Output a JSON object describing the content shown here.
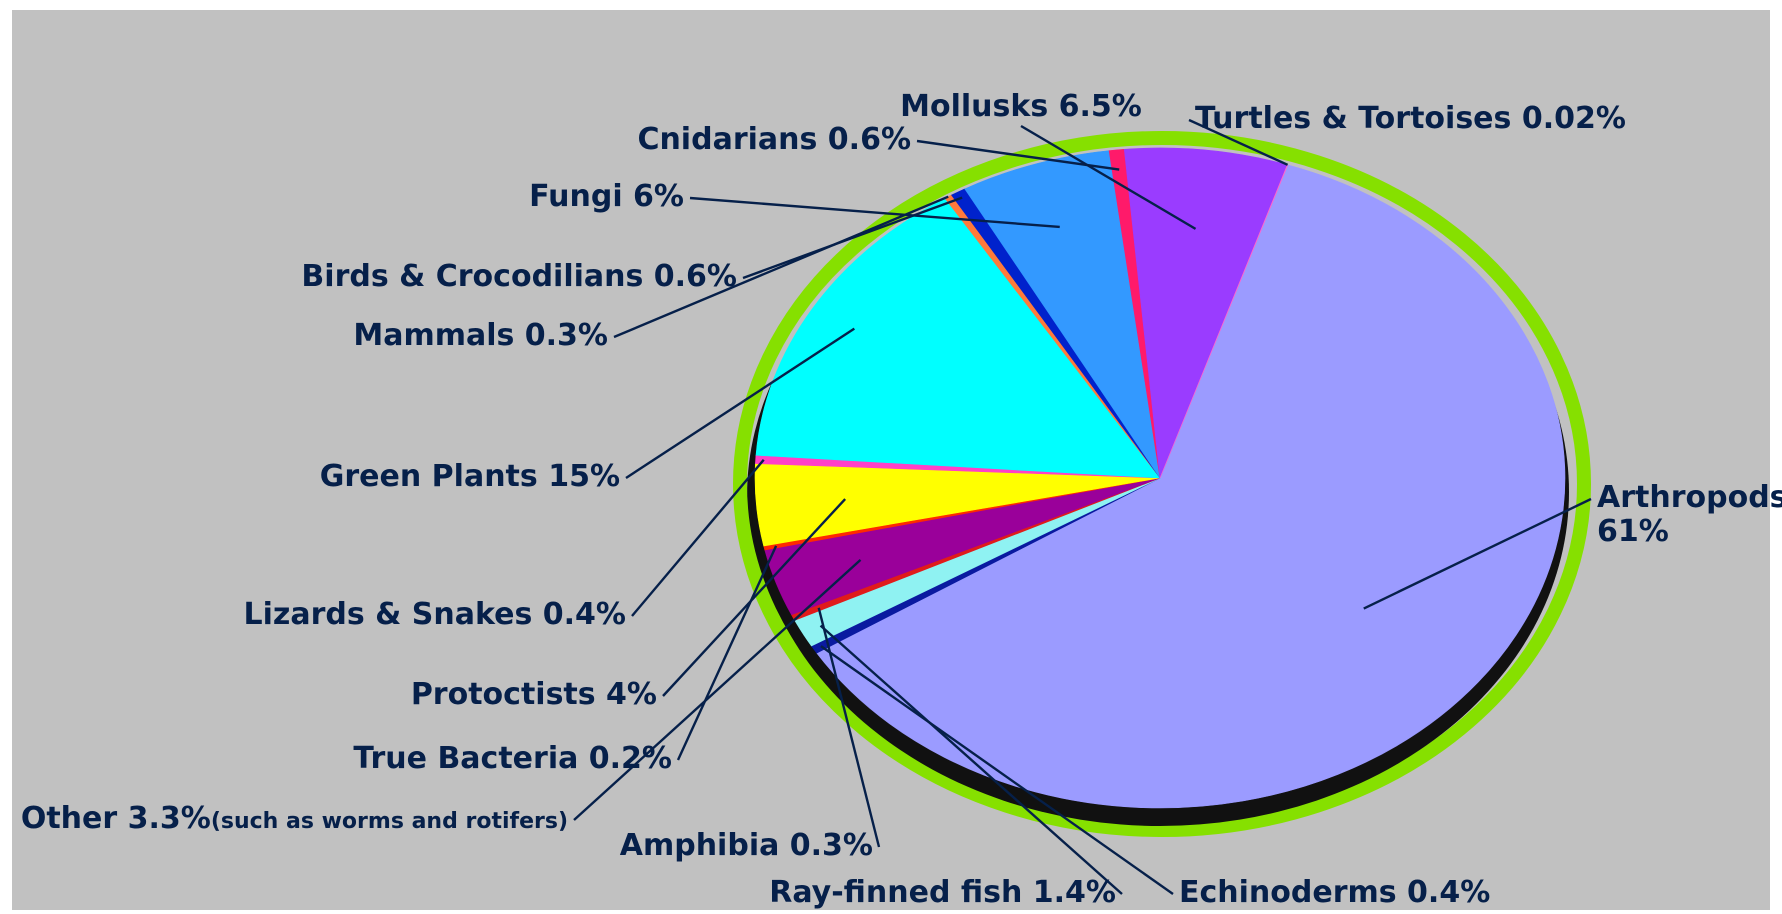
{
  "chart_data": {
    "type": "pie",
    "title": "",
    "background_color": "#c1c1c1",
    "rim_color": "#86e000",
    "shadow_color": "#111111",
    "slices": [
      {
        "label": "Arthropods",
        "label_line2": "61%",
        "value": 61,
        "color": "#9b9bff"
      },
      {
        "label": "Echinoderms 0.4%",
        "value": 0.4,
        "color": "#0a1aa0"
      },
      {
        "label": "Ray-finned fish 1.4%",
        "value": 1.4,
        "color": "#8ff2f2"
      },
      {
        "label": "Amphibia 0.3%",
        "value": 0.3,
        "color": "#e01b1b"
      },
      {
        "label": "Other 3.3%",
        "label_note": "(such as worms and rotifers)",
        "value": 3.3,
        "color": "#9a009a"
      },
      {
        "label": "True Bacteria 0.2%",
        "value": 0.2,
        "color": "#ff2a00"
      },
      {
        "label": "Protoctists 4%",
        "value": 4,
        "color": "#ffff00"
      },
      {
        "label": "Lizards & Snakes 0.4%",
        "value": 0.4,
        "color": "#ff40c8"
      },
      {
        "label": "Green Plants 15%",
        "value": 15,
        "color": "#00ffff"
      },
      {
        "label": "Mammals 0.3%",
        "value": 0.3,
        "color": "#ff7a3a"
      },
      {
        "label": "Birds & Crocodilians 0.6%",
        "value": 0.6,
        "color": "#0022cc"
      },
      {
        "label": "Fungi 6%",
        "value": 6,
        "color": "#3399ff"
      },
      {
        "label": "Cnidarians 0.6%",
        "value": 0.6,
        "color": "#ff1a6a"
      },
      {
        "label": "Mollusks 6.5%",
        "value": 6.5,
        "color": "#9a3cff"
      },
      {
        "label": "Turtles & Tortoises 0.02%",
        "value": 0.02,
        "color": "#ff66cc"
      }
    ]
  }
}
